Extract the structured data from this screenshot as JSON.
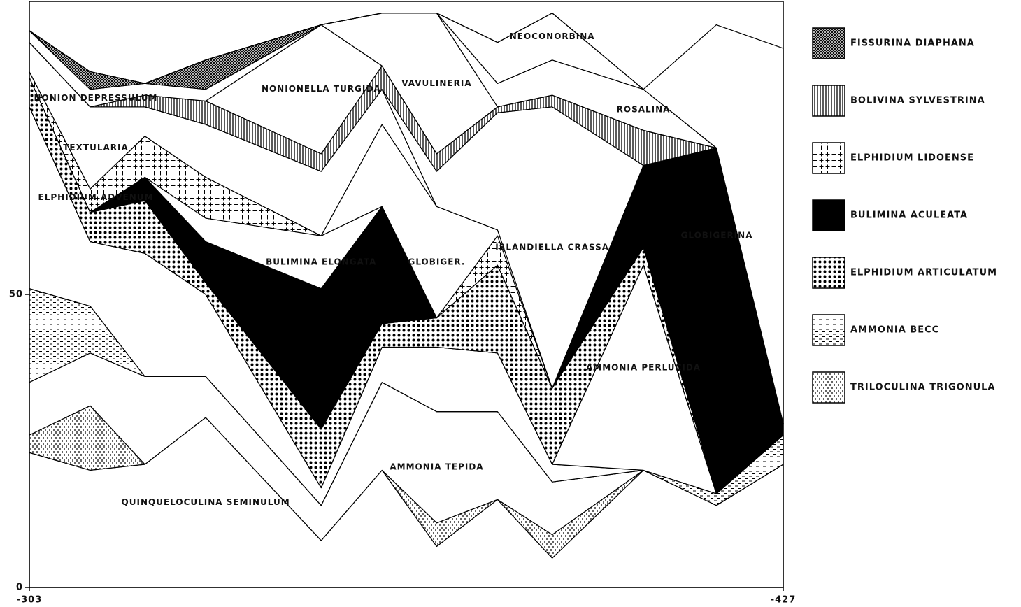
{
  "chart_data": {
    "type": "stacked-area",
    "x": [
      -303,
      -313,
      -322,
      -332,
      -351,
      -361,
      -370,
      -380,
      -389,
      -404,
      -416,
      -427
    ],
    "xlim": [
      -303,
      -427
    ],
    "xticks": [
      -303,
      -427
    ],
    "ylim": [
      0,
      100
    ],
    "yticks": [
      0,
      50
    ],
    "series": [
      {
        "name": "QUINQUELOCULINA SEMINULUM",
        "pattern": "white",
        "values": [
          23,
          20,
          21,
          29,
          8,
          20,
          7,
          15,
          5,
          20,
          14,
          21
        ]
      },
      {
        "name": "TRILOCULINA TRIGONULA",
        "pattern": "sticks",
        "values": [
          3,
          11,
          0,
          0,
          0,
          0,
          4,
          0,
          4,
          0,
          0,
          0
        ]
      },
      {
        "name": "AMMONIA TEPIDA",
        "pattern": "white",
        "values": [
          9,
          9,
          15,
          7,
          6,
          15,
          19,
          15,
          9,
          0,
          0,
          0
        ]
      },
      {
        "name": "AMMONIA BECC",
        "pattern": "dashes",
        "values": [
          16,
          8,
          0,
          0,
          0,
          0,
          0,
          0,
          0,
          0,
          2,
          5
        ]
      },
      {
        "name": "ELPHIDIUM ADVENUM",
        "pattern": "white",
        "values": [
          31,
          11,
          21,
          14,
          3,
          6,
          11,
          10,
          3,
          0,
          0,
          0
        ]
      },
      {
        "name": "AMMONIA PERLUCIDA",
        "pattern": "white",
        "values": [
          0,
          0,
          0,
          0,
          0,
          0,
          0,
          0,
          0,
          35,
          0,
          0
        ]
      },
      {
        "name": "ELPHIDIUM ARTICULATUM",
        "pattern": "dots",
        "values": [
          5,
          5,
          9,
          2,
          10,
          4,
          5,
          15,
          13,
          3,
          0,
          0
        ]
      },
      {
        "name": "BULIMINA ACULEATA",
        "pattern": "black",
        "values": [
          0,
          0,
          4,
          7,
          24,
          20,
          0,
          0,
          0,
          14,
          59,
          2
        ]
      },
      {
        "name": "BULIMINA ELONGATA",
        "pattern": "white",
        "values": [
          0,
          0,
          0,
          4,
          9,
          0,
          0,
          0,
          0,
          0,
          0,
          0
        ]
      },
      {
        "name": "ELPHIDIUM LIDOENSE",
        "pattern": "plus",
        "values": [
          1,
          4,
          7,
          7,
          0,
          0,
          0,
          5,
          0,
          0,
          0,
          0
        ]
      },
      {
        "name": "GLOBIGER.",
        "pattern": "white",
        "values": [
          0,
          0,
          0,
          0,
          0,
          14,
          19,
          1,
          0,
          0,
          0,
          0
        ]
      },
      {
        "name": "TEXTULARIA",
        "pattern": "white",
        "values": [
          5,
          14,
          5,
          9,
          11,
          6,
          0,
          0,
          0,
          0,
          0,
          0
        ]
      },
      {
        "name": "ISLANDIELLA CRASSA",
        "pattern": "white",
        "values": [
          0,
          0,
          0,
          0,
          0,
          0,
          6,
          20,
          48,
          0,
          0,
          0
        ]
      },
      {
        "name": "BOLIVINA SYLVESTRINA",
        "pattern": "vlines",
        "values": [
          0,
          0,
          2,
          4,
          3,
          4,
          3,
          1,
          2,
          6,
          0,
          0
        ]
      },
      {
        "name": "NONIONELLA TURGIDA",
        "pattern": "white",
        "values": [
          0,
          0,
          0,
          0,
          22,
          0,
          0,
          0,
          0,
          0,
          0,
          0
        ]
      },
      {
        "name": "NONION DEPRESSULUM",
        "pattern": "white",
        "values": [
          2,
          3,
          2,
          2,
          0,
          0,
          0,
          0,
          0,
          0,
          0,
          0
        ]
      },
      {
        "name": "FISSURINA DIAPHANA",
        "pattern": "crosshatch",
        "values": [
          0,
          3,
          0,
          5,
          0,
          0,
          0,
          0,
          0,
          0,
          0,
          0
        ]
      },
      {
        "name": "VAVULINERIA",
        "pattern": "white",
        "values": [
          0,
          0,
          0,
          0,
          0,
          9,
          24,
          0,
          0,
          0,
          0,
          0
        ]
      },
      {
        "name": "ROSALINA",
        "pattern": "white",
        "values": [
          0,
          0,
          0,
          0,
          0,
          0,
          0,
          4,
          6,
          7,
          0,
          0
        ]
      },
      {
        "name": "NEOCONORBINA",
        "pattern": "white",
        "values": [
          0,
          0,
          0,
          0,
          0,
          0,
          0,
          7,
          8,
          0,
          0,
          0
        ]
      },
      {
        "name": "GLOBIGERINA",
        "pattern": "white",
        "values": [
          0,
          0,
          0,
          0,
          0,
          0,
          0,
          0,
          0,
          0,
          21,
          64
        ]
      }
    ]
  }
}
